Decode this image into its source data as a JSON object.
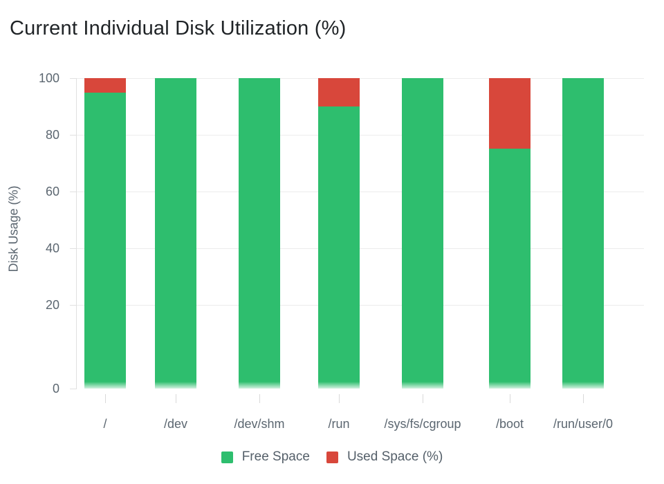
{
  "title": "Current Individual Disk Utilization (%)",
  "colors": {
    "free": "#2ebe6e",
    "used": "#d8473b",
    "title_text": "#1f2326",
    "axis_text": "#5b6670",
    "grid": "#ececec",
    "axis_line": "#e0e0e0",
    "tick": "#d9d9d9"
  },
  "chart_data": {
    "type": "bar",
    "stacked": true,
    "title": "Current Individual Disk Utilization (%)",
    "ylabel": "Disk Usage (%)",
    "xlabel": "",
    "categories": [
      "/",
      "/dev",
      "/dev/shm",
      "/run",
      "/sys/fs/cgroup",
      "/boot",
      "/run/user/0"
    ],
    "series": [
      {
        "name": "Free Space",
        "color": "#2ebe6e",
        "values": [
          95,
          100,
          100,
          90,
          100,
          75,
          100
        ]
      },
      {
        "name": "Used Space (%)",
        "color": "#d8473b",
        "values": [
          5,
          0,
          0,
          10,
          0,
          25,
          0
        ]
      }
    ],
    "ylim": [
      0,
      100
    ],
    "yticks": [
      0,
      20,
      40,
      60,
      80,
      100
    ],
    "grid": true,
    "legend_position": "bottom"
  },
  "legend": {
    "items": [
      {
        "label": "Free Space",
        "color": "#2ebe6e"
      },
      {
        "label": "Used Space (%)",
        "color": "#d8473b"
      }
    ]
  }
}
